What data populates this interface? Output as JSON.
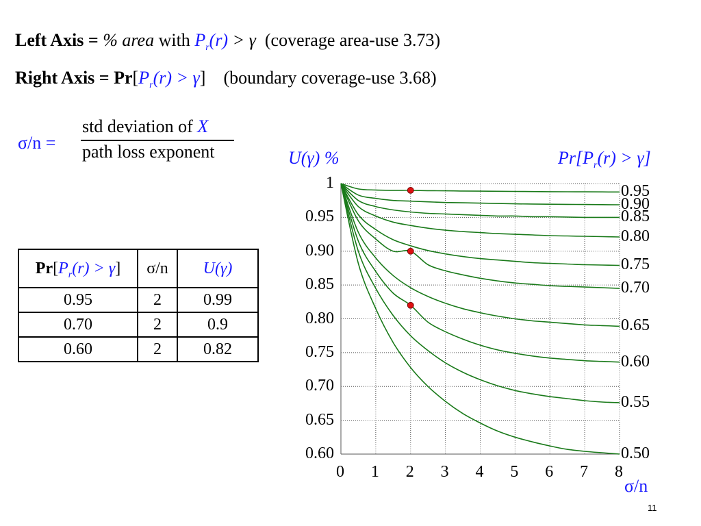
{
  "header": {
    "left_axis_prefix": "Left Axis = ",
    "left_axis_pct": "% ",
    "left_axis_area": "area",
    "left_axis_with": " with ",
    "left_axis_P": "P",
    "left_axis_r_sub": "r",
    "left_axis_r": "(r)",
    "left_axis_gt": " > γ",
    "left_axis_note": "(coverage area-use 3.73)",
    "right_axis_prefix": "Right Axis = ",
    "right_axis_pr": "Pr",
    "right_axis_open": "[",
    "right_axis_P": "P",
    "right_axis_r_sub": "r",
    "right_axis_r": "(r)",
    "right_axis_gt": " > γ",
    "right_axis_close": "]",
    "right_axis_note": "(boundary coverage-use 3.68)"
  },
  "definition": {
    "lhs": "σ/n =",
    "numerator": "std deviation of ",
    "numerator_var": "X",
    "denominator": "path loss exponent"
  },
  "table": {
    "header": {
      "col1_pr": "Pr",
      "col1_open": "[",
      "col1_P": "P",
      "col1_r_sub": "r",
      "col1_r": "(r) > γ",
      "col1_close": "]",
      "col2": "σ/n",
      "col3": "U(γ)"
    },
    "rows": [
      {
        "pr": "0.95",
        "sn": "2",
        "u": "0.99"
      },
      {
        "pr": "0.70",
        "sn": "2",
        "u": "0.9"
      },
      {
        "pr": "0.60",
        "sn": "2",
        "u": "0.82"
      }
    ]
  },
  "chart_data": {
    "type": "line",
    "left_axis_label": "U(γ) %",
    "right_axis_label": "Pr[Pr(r) > γ]",
    "right_axis_label_parts": {
      "a": "Pr[P",
      "sub": "r",
      "b": "(r) > γ]"
    },
    "xlabel": "σ/n",
    "xlim": [
      0,
      8
    ],
    "ylim": [
      0.6,
      1.0
    ],
    "x_ticks": [
      "0",
      "1",
      "2",
      "3",
      "4",
      "5",
      "6",
      "7",
      "8"
    ],
    "y_ticks": [
      "1",
      "0.95",
      "0.90",
      "0.85",
      "0.80",
      "0.75",
      "0.70",
      "0.65",
      "0.60"
    ],
    "grid": true,
    "grid_style": "dotted",
    "line_color": "#1a7a1a",
    "marker_color": "#dd1111",
    "x": [
      0,
      0.5,
      1,
      1.5,
      2,
      2.5,
      3,
      3.5,
      4,
      4.5,
      5,
      5.5,
      6,
      6.5,
      7,
      7.5,
      8
    ],
    "series": [
      {
        "name": "0.95",
        "values": [
          1.0,
          0.992,
          0.9905,
          0.99,
          0.99,
          0.9895,
          0.9893,
          0.989,
          0.9888,
          0.9886,
          0.9884,
          0.9882,
          0.988,
          0.9878,
          0.9877,
          0.9876,
          0.9875
        ]
      },
      {
        "name": "0.90",
        "values": [
          1.0,
          0.983,
          0.978,
          0.975,
          0.974,
          0.973,
          0.972,
          0.9715,
          0.971,
          0.9705,
          0.97,
          0.9697,
          0.9694,
          0.9692,
          0.969,
          0.9688,
          0.9686
        ]
      },
      {
        "name": "0.85",
        "values": [
          1.0,
          0.975,
          0.966,
          0.961,
          0.958,
          0.956,
          0.955,
          0.954,
          0.953,
          0.952,
          0.952,
          0.951,
          0.951,
          0.9505,
          0.95,
          0.95,
          0.95
        ]
      },
      {
        "name": "0.80",
        "values": [
          1.0,
          0.966,
          0.952,
          0.943,
          0.938,
          0.934,
          0.931,
          0.929,
          0.9275,
          0.926,
          0.925,
          0.924,
          0.923,
          0.9225,
          0.922,
          0.9215,
          0.921
        ]
      },
      {
        "name": "0.75",
        "values": [
          1.0,
          0.954,
          0.932,
          0.917,
          0.908,
          0.901,
          0.896,
          0.892,
          0.889,
          0.887,
          0.885,
          0.883,
          0.882,
          0.881,
          0.88,
          0.8795,
          0.879
        ]
      },
      {
        "name": "0.70",
        "values": [
          1.0,
          0.945,
          0.918,
          0.9,
          0.9,
          0.88,
          0.871,
          0.865,
          0.86,
          0.856,
          0.853,
          0.851,
          0.849,
          0.848,
          0.847,
          0.846,
          0.845
        ]
      },
      {
        "name": "0.65",
        "values": [
          1.0,
          0.928,
          0.89,
          0.864,
          0.846,
          0.833,
          0.823,
          0.815,
          0.809,
          0.804,
          0.8,
          0.797,
          0.795,
          0.793,
          0.791,
          0.79,
          0.789
        ]
      },
      {
        "name": "0.60",
        "values": [
          1.0,
          0.915,
          0.87,
          0.838,
          0.82,
          0.795,
          0.781,
          0.77,
          0.761,
          0.754,
          0.749,
          0.745,
          0.742,
          0.74,
          0.738,
          0.737,
          0.736
        ]
      },
      {
        "name": "0.55",
        "values": [
          1.0,
          0.9,
          0.845,
          0.805,
          0.775,
          0.753,
          0.735,
          0.721,
          0.71,
          0.701,
          0.694,
          0.689,
          0.685,
          0.682,
          0.679,
          0.677,
          0.676
        ]
      },
      {
        "name": "0.50",
        "values": [
          1.0,
          0.882,
          0.815,
          0.765,
          0.728,
          0.7,
          0.678,
          0.66,
          0.646,
          0.634,
          0.625,
          0.618,
          0.612,
          0.607,
          0.604,
          0.602,
          0.6
        ]
      }
    ],
    "markers": [
      {
        "x": 2,
        "y": 0.99
      },
      {
        "x": 2,
        "y": 0.9
      },
      {
        "x": 2,
        "y": 0.82
      }
    ]
  },
  "slide": {
    "page_number": "11"
  }
}
